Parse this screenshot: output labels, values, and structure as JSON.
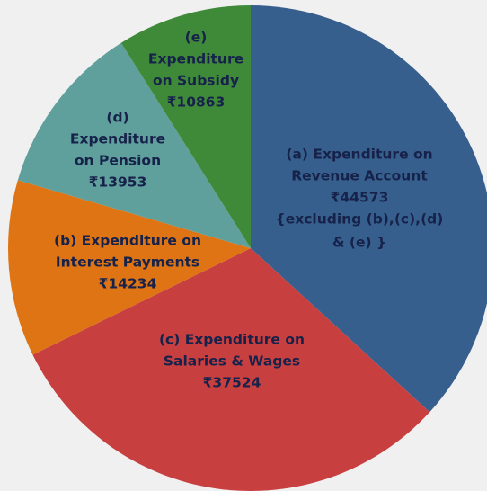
{
  "chart_data": {
    "type": "pie",
    "categories": [
      [
        "(a) Expenditure on",
        "Revenue Account"
      ],
      [
        "(c) Expenditure on",
        "Salaries & Wages"
      ],
      [
        "(b) Expenditure on",
        "Interest Payments"
      ],
      [
        "(d)",
        "Expenditure",
        "on Pension"
      ],
      [
        "(e)",
        "Expenditure",
        "on Subsidy"
      ]
    ],
    "values": [
      44573,
      37524,
      14234,
      13953,
      10863
    ],
    "value_labels": [
      "₹44573",
      "₹37524",
      "₹14234",
      "₹13953",
      "₹10863"
    ],
    "annotation": [
      "{excluding (b),(c),(d)",
      "& (e) }"
    ],
    "colors": [
      "#375f8d",
      "#c83f40",
      "#df7414",
      "#60a09c",
      "#3f8a39"
    ]
  }
}
